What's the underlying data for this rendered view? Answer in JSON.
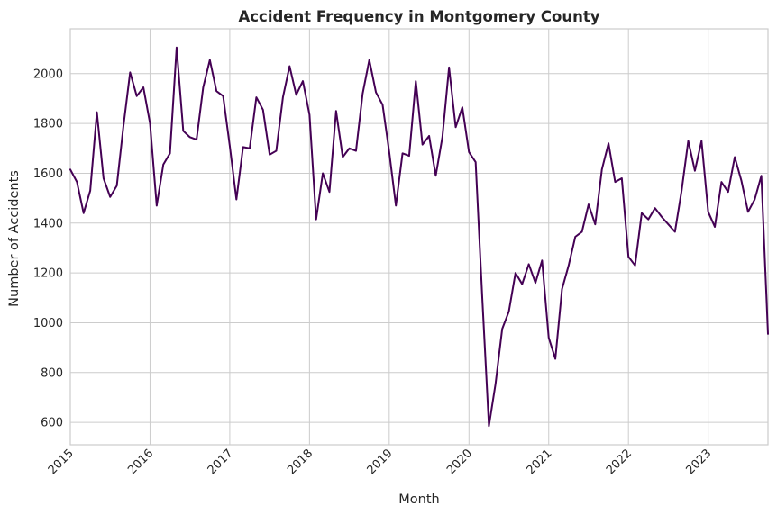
{
  "chart_data": {
    "type": "line",
    "title": "Accident Frequency in Montgomery County",
    "xlabel": "Month",
    "ylabel": "Number of Accidents",
    "x_tick_labels": [
      "2015",
      "2016",
      "2017",
      "2018",
      "2019",
      "2020",
      "2021",
      "2022",
      "2023"
    ],
    "y_ticks": [
      600,
      800,
      1000,
      1200,
      1400,
      1600,
      1800,
      2000
    ],
    "xlim": [
      "2015-01",
      "2023-10"
    ],
    "ylim": [
      510,
      2180
    ],
    "grid": true,
    "line_color": "#440154",
    "x": [
      "2015-01",
      "2015-02",
      "2015-03",
      "2015-04",
      "2015-05",
      "2015-06",
      "2015-07",
      "2015-08",
      "2015-09",
      "2015-10",
      "2015-11",
      "2015-12",
      "2016-01",
      "2016-02",
      "2016-03",
      "2016-04",
      "2016-05",
      "2016-06",
      "2016-07",
      "2016-08",
      "2016-09",
      "2016-10",
      "2016-11",
      "2016-12",
      "2017-01",
      "2017-02",
      "2017-03",
      "2017-04",
      "2017-05",
      "2017-06",
      "2017-07",
      "2017-08",
      "2017-09",
      "2017-10",
      "2017-11",
      "2017-12",
      "2018-01",
      "2018-02",
      "2018-03",
      "2018-04",
      "2018-05",
      "2018-06",
      "2018-07",
      "2018-08",
      "2018-09",
      "2018-10",
      "2018-11",
      "2018-12",
      "2019-01",
      "2019-02",
      "2019-03",
      "2019-04",
      "2019-05",
      "2019-06",
      "2019-07",
      "2019-08",
      "2019-09",
      "2019-10",
      "2019-11",
      "2019-12",
      "2020-01",
      "2020-02",
      "2020-03",
      "2020-04",
      "2020-05",
      "2020-06",
      "2020-07",
      "2020-08",
      "2020-09",
      "2020-10",
      "2020-11",
      "2020-12",
      "2021-01",
      "2021-02",
      "2021-03",
      "2021-04",
      "2021-05",
      "2021-06",
      "2021-07",
      "2021-08",
      "2021-09",
      "2021-10",
      "2021-11",
      "2021-12",
      "2022-01",
      "2022-02",
      "2022-03",
      "2022-04",
      "2022-05",
      "2022-06",
      "2022-07",
      "2022-08",
      "2022-09",
      "2022-10",
      "2022-11",
      "2022-12",
      "2023-01",
      "2023-02",
      "2023-03",
      "2023-04",
      "2023-05",
      "2023-06",
      "2023-07",
      "2023-08",
      "2023-09",
      "2023-10"
    ],
    "values": [
      1615,
      1565,
      1440,
      1530,
      1845,
      1580,
      1505,
      1550,
      1790,
      2005,
      1910,
      1945,
      1800,
      1470,
      1635,
      1680,
      2105,
      1770,
      1745,
      1735,
      1945,
      2055,
      1930,
      1910,
      1710,
      1495,
      1705,
      1700,
      1905,
      1855,
      1675,
      1690,
      1905,
      2030,
      1915,
      1970,
      1835,
      1415,
      1600,
      1525,
      1850,
      1665,
      1700,
      1690,
      1920,
      2055,
      1925,
      1875,
      1685,
      1470,
      1680,
      1670,
      1970,
      1715,
      1750,
      1590,
      1745,
      2025,
      1785,
      1865,
      1685,
      1645,
      1100,
      585,
      755,
      975,
      1045,
      1200,
      1155,
      1235,
      1160,
      1250,
      940,
      855,
      1135,
      1230,
      1345,
      1365,
      1475,
      1395,
      1615,
      1720,
      1565,
      1580,
      1265,
      1230,
      1440,
      1415,
      1460,
      1425,
      1395,
      1365,
      1530,
      1730,
      1610,
      1730,
      1445,
      1385,
      1565,
      1525,
      1665,
      1570,
      1445,
      1495,
      1590,
      955
    ]
  }
}
